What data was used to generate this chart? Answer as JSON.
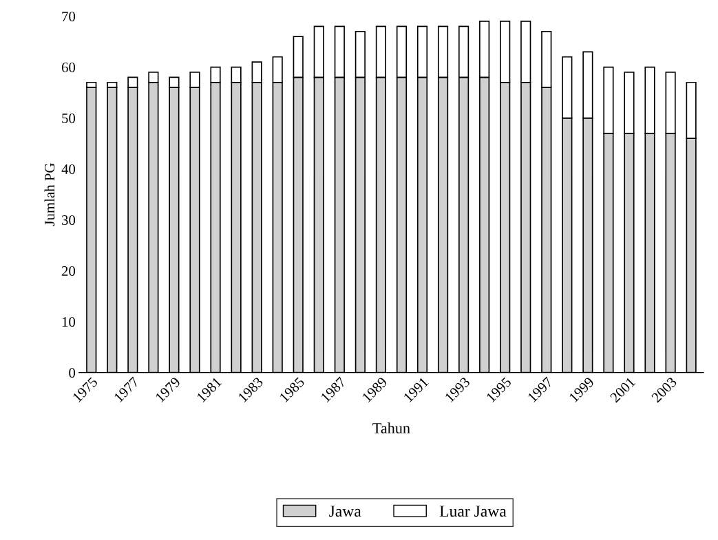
{
  "chart_data": {
    "type": "bar",
    "stacked": true,
    "xlabel": "Tahun",
    "ylabel": "Jumlah PG",
    "categories": [
      "1975",
      null,
      "1977",
      null,
      "1979",
      null,
      "1981",
      null,
      "1983",
      null,
      "1985",
      null,
      "1987",
      null,
      "1989",
      null,
      "1991",
      null,
      "1993",
      null,
      "1995",
      null,
      "1997",
      null,
      "1999",
      null,
      "2001",
      null,
      "2003",
      null
    ],
    "series": [
      {
        "name": "Jawa",
        "color": "#d0d0d0",
        "values": [
          56,
          56,
          56,
          57,
          56,
          56,
          57,
          57,
          57,
          57,
          58,
          58,
          58,
          58,
          58,
          58,
          58,
          58,
          58,
          58,
          57,
          57,
          56,
          50,
          50,
          47,
          47,
          47,
          47,
          46
        ]
      },
      {
        "name": "Luar Jawa",
        "color": "#ffffff",
        "values": [
          1,
          1,
          2,
          2,
          2,
          3,
          3,
          3,
          4,
          5,
          8,
          10,
          10,
          9,
          10,
          10,
          10,
          10,
          10,
          11,
          12,
          12,
          11,
          12,
          13,
          13,
          12,
          13,
          12,
          11
        ]
      }
    ],
    "ylim": [
      0,
      70
    ],
    "yticks": [
      0,
      10,
      20,
      30,
      40,
      50,
      60,
      70
    ],
    "legend": "bottom",
    "grid": false
  }
}
